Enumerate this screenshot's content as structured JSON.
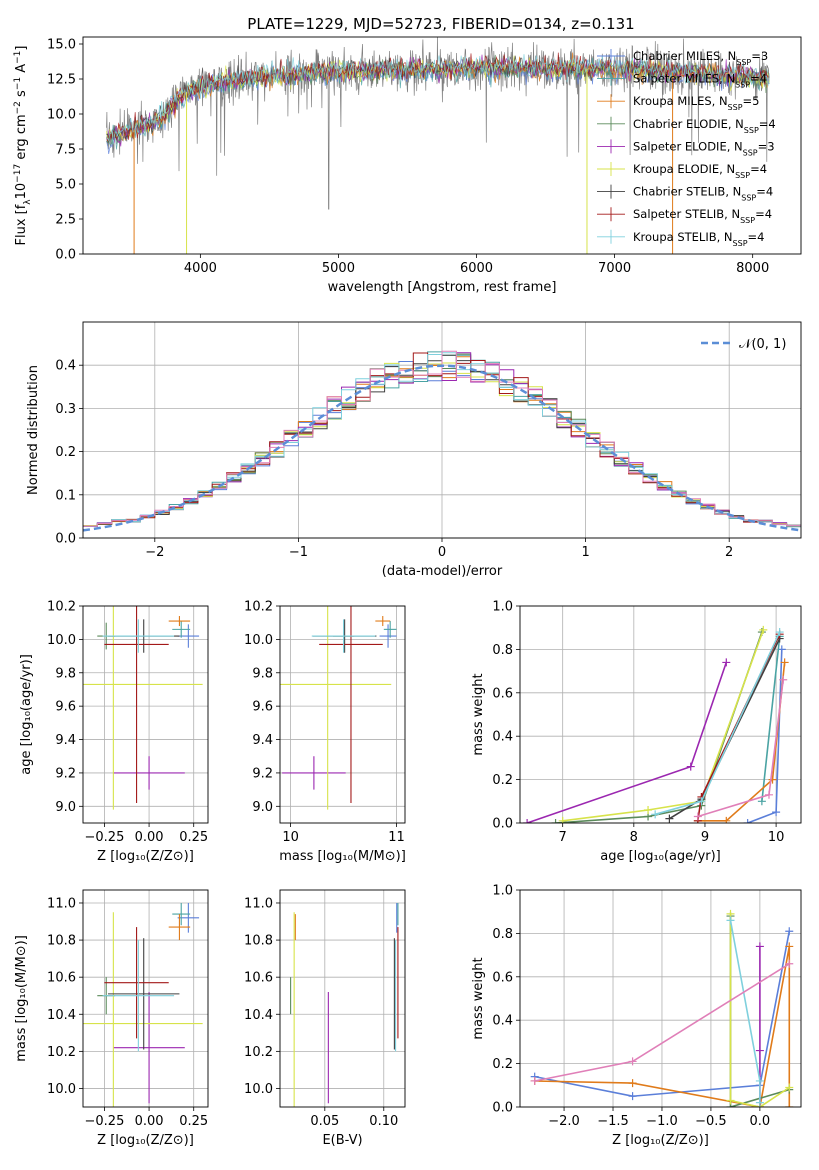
{
  "figure_title": "PLATE=1229, MJD=52723, FIBERID=0134, z=0.131",
  "colors": {
    "Chabrier MILES": "#5b7fd9",
    "Salpeter MILES": "#4aa3a3",
    "Kroupa MILES": "#e07b1a",
    "Chabrier ELODIE": "#5a8a5a",
    "Salpeter ELODIE": "#9b27b0",
    "Kroupa ELODIE": "#d7e34a",
    "Chabrier STELIB": "#404040",
    "Salpeter STELIB": "#a31919",
    "Kroupa STELIB": "#7fd0dd",
    "data": "#808080",
    "pink": "#e07fb8"
  },
  "chart_data": [
    {
      "id": "spectrum",
      "type": "line",
      "title": "PLATE=1229, MJD=52723, FIBERID=0134, z=0.131",
      "xlabel": "wavelength [Angstrom, rest frame]",
      "ylabel_main": "Flux [f",
      "ylabel_sub": "λ",
      "ylabel_rest": "10",
      "ylabel_exp": "−17",
      "ylabel_tail": " erg cm",
      "ylabel_exp2": "−2",
      "ylabel_tail2": " s",
      "ylabel_exp3": "−1",
      "ylabel_tail3": " A",
      "ylabel_exp4": "−1",
      "ylabel_end": "]",
      "xlim": [
        3150,
        8350
      ],
      "ylim": [
        0,
        15.5
      ],
      "xticks": [
        "4000",
        "5000",
        "6000",
        "7000",
        "8000"
      ],
      "xtick_values": [
        4000,
        5000,
        6000,
        7000,
        8000
      ],
      "yticks": [
        "0.0",
        "2.5",
        "5.0",
        "7.5",
        "10.0",
        "12.5",
        "15.0"
      ],
      "ytick_values": [
        0,
        2.5,
        5,
        7.5,
        10,
        12.5,
        15
      ],
      "spectrum_range": [
        3320,
        8120
      ],
      "continuum": [
        [
          3320,
          8.2
        ],
        [
          3700,
          9.5
        ],
        [
          3880,
          11.5
        ],
        [
          4100,
          12.2
        ],
        [
          4500,
          12.7
        ],
        [
          5000,
          13.0
        ],
        [
          6000,
          13.3
        ],
        [
          7000,
          13.2
        ],
        [
          8120,
          12.6
        ]
      ],
      "legend": [
        {
          "name": "Chabrier MILES",
          "nssp": "3"
        },
        {
          "name": "Salpeter MILES",
          "nssp": "4"
        },
        {
          "name": "Kroupa MILES",
          "nssp": "5"
        },
        {
          "name": "Chabrier ELODIE",
          "nssp": "4"
        },
        {
          "name": "Salpeter ELODIE",
          "nssp": "3"
        },
        {
          "name": "Kroupa ELODIE",
          "nssp": "4"
        },
        {
          "name": "Chabrier STELIB",
          "nssp": "4"
        },
        {
          "name": "Salpeter STELIB",
          "nssp": "4"
        },
        {
          "name": "Kroupa STELIB",
          "nssp": "4"
        }
      ],
      "nssp_label": "N",
      "nssp_sub": "SSP"
    },
    {
      "id": "residuals",
      "type": "line",
      "xlabel": "(data-model)/error",
      "ylabel": "Normed distribution",
      "xlim": [
        -2.5,
        2.5
      ],
      "ylim": [
        0,
        0.5
      ],
      "xticks": [
        "−2",
        "−1",
        "0",
        "1",
        "2"
      ],
      "xtick_values": [
        -2,
        -1,
        0,
        1,
        2
      ],
      "yticks": [
        "0.0",
        "0.1",
        "0.2",
        "0.3",
        "0.4"
      ],
      "ytick_values": [
        0,
        0.1,
        0.2,
        0.3,
        0.4
      ],
      "legend_label": "𝒩(0, 1)",
      "bin_width": 0.1
    },
    {
      "id": "age_vs_Z",
      "type": "scatter",
      "xlabel": "Z [log₁₀(Z/Z⊙)]",
      "ylabel": "age  [log₁₀(age/yr)]",
      "xlim": [
        -0.37,
        0.33
      ],
      "ylim": [
        8.9,
        10.2
      ],
      "xticks": [
        "−0.25",
        "0.00",
        "0.25"
      ],
      "xtick_values": [
        -0.25,
        0,
        0.25
      ],
      "yticks": [
        "9.0",
        "9.2",
        "9.4",
        "9.6",
        "9.8",
        "10.0",
        "10.2"
      ],
      "ytick_values": [
        9.0,
        9.2,
        9.4,
        9.6,
        9.8,
        10.0,
        10.2
      ]
    },
    {
      "id": "age_vs_mass",
      "type": "scatter",
      "xlabel": "mass [log₁₀(M/M⊙)]",
      "ylabel": "",
      "xlim": [
        9.9,
        11.08
      ],
      "ylim": [
        8.9,
        10.2
      ],
      "xticks": [
        "10",
        "11"
      ],
      "xtick_values": [
        10,
        11
      ],
      "yticks": [
        "9.0",
        "9.2",
        "9.4",
        "9.6",
        "9.8",
        "10.0",
        "10.2"
      ],
      "ytick_values": [
        9.0,
        9.2,
        9.4,
        9.6,
        9.8,
        10.0,
        10.2
      ]
    },
    {
      "id": "weight_vs_age",
      "type": "line",
      "xlabel": "age  [log₁₀(age/yr)]",
      "ylabel": "mass weight",
      "xlim": [
        6.4,
        10.35
      ],
      "ylim": [
        0,
        1
      ],
      "xticks": [
        "7",
        "8",
        "9",
        "10"
      ],
      "xtick_values": [
        7,
        8,
        9,
        10
      ],
      "yticks": [
        "0.0",
        "0.2",
        "0.4",
        "0.6",
        "0.8",
        "1.0"
      ],
      "ytick_values": [
        0,
        0.2,
        0.4,
        0.6,
        0.8,
        1.0
      ]
    },
    {
      "id": "mass_vs_Z",
      "type": "scatter",
      "xlabel": "Z [log₁₀(Z/Z⊙)]",
      "ylabel": "mass [log₁₀(M/M⊙)]",
      "xlim": [
        -0.37,
        0.33
      ],
      "ylim": [
        9.9,
        11.07
      ],
      "xticks": [
        "−0.25",
        "0.00",
        "0.25"
      ],
      "xtick_values": [
        -0.25,
        0,
        0.25
      ],
      "yticks": [
        "10.0",
        "10.2",
        "10.4",
        "10.6",
        "10.8",
        "11.0"
      ],
      "ytick_values": [
        10.0,
        10.2,
        10.4,
        10.6,
        10.8,
        11.0
      ]
    },
    {
      "id": "mass_vs_ebv",
      "type": "scatter",
      "xlabel": "E(B-V)",
      "ylabel": "",
      "xlim": [
        0.012,
        0.118
      ],
      "ylim": [
        9.9,
        11.07
      ],
      "xticks": [
        "0.05",
        "0.10"
      ],
      "xtick_values": [
        0.05,
        0.1
      ],
      "yticks": [
        "10.0",
        "10.2",
        "10.4",
        "10.6",
        "10.8",
        "11.0"
      ],
      "ytick_values": [
        10.0,
        10.2,
        10.4,
        10.6,
        10.8,
        11.0
      ]
    },
    {
      "id": "weight_vs_Z",
      "type": "line",
      "xlabel": "Z [log₁₀(Z/Z⊙)]",
      "ylabel": "mass weight",
      "xlim": [
        -2.45,
        0.42
      ],
      "ylim": [
        0,
        1
      ],
      "xticks": [
        "−2.0",
        "−1.5",
        "−1.0",
        "−0.5",
        "0.0"
      ],
      "xtick_values": [
        -2.0,
        -1.5,
        -1.0,
        -0.5,
        0.0
      ],
      "yticks": [
        "0.0",
        "0.2",
        "0.4",
        "0.6",
        "0.8",
        "1.0"
      ],
      "ytick_values": [
        0,
        0.2,
        0.4,
        0.6,
        0.8,
        1.0
      ]
    }
  ],
  "fits": [
    {
      "key": "Chabrier MILES",
      "Z": 0.22,
      "Zerr": 0.06,
      "age": 10.02,
      "ageerr": 0.07,
      "mass": 10.92,
      "masserr": 0.08,
      "ebv": 0.111
    },
    {
      "key": "Salpeter MILES",
      "Z": 0.18,
      "Zerr": 0.05,
      "age": 10.06,
      "ageerr": 0.05,
      "mass": 10.94,
      "masserr": 0.06,
      "ebv": 0.112
    },
    {
      "key": "Kroupa MILES",
      "Z": 0.17,
      "Zerr": 0.06,
      "age": 10.11,
      "ageerr": 0.03,
      "mass": 10.87,
      "masserr": 0.07,
      "ebv": 0.025
    },
    {
      "key": "Chabrier ELODIE",
      "Z": -0.24,
      "Zerr": 0.05,
      "age": 10.02,
      "ageerr": 0.08,
      "mass": 10.5,
      "masserr": 0.1,
      "ebv": 0.021
    },
    {
      "key": "Salpeter ELODIE",
      "Z": 0.0,
      "Zerr": 0.2,
      "age": 9.2,
      "ageerr": 0.1,
      "mass": 10.22,
      "masserr": 0.3,
      "ebv": 0.053
    },
    {
      "key": "Kroupa ELODIE",
      "Z": -0.2,
      "Zerr": 0.5,
      "age": 9.73,
      "ageerr": 0.75,
      "mass": 10.35,
      "masserr": 0.6,
      "ebv": 0.024
    },
    {
      "key": "Chabrier STELIB",
      "Z": -0.03,
      "Zerr": 0.2,
      "age": 10.02,
      "ageerr": 0.1,
      "mass": 10.51,
      "masserr": 0.3,
      "ebv": 0.109
    },
    {
      "key": "Salpeter STELIB",
      "Z": -0.07,
      "Zerr": 0.18,
      "age": 9.97,
      "ageerr": 0.95,
      "mass": 10.57,
      "masserr": 0.3,
      "ebv": 0.112
    },
    {
      "key": "Kroupa STELIB",
      "Z": -0.06,
      "Zerr": 0.2,
      "age": 10.02,
      "ageerr": 0.1,
      "mass": 10.5,
      "masserr": 0.3,
      "ebv": 0.11
    }
  ],
  "weights_age": [
    {
      "key": "Chabrier MILES",
      "points": [
        [
          9.6,
          0.0
        ],
        [
          10.0,
          0.05
        ],
        [
          10.08,
          0.8
        ]
      ]
    },
    {
      "key": "Salpeter MILES",
      "points": [
        [
          9.8,
          0.1
        ],
        [
          10.05,
          0.86
        ]
      ]
    },
    {
      "key": "Kroupa MILES",
      "points": [
        [
          8.9,
          0.01
        ],
        [
          9.3,
          0.01
        ],
        [
          9.95,
          0.2
        ],
        [
          10.12,
          0.74
        ]
      ]
    },
    {
      "key": "Chabrier ELODIE",
      "points": [
        [
          6.9,
          0.0
        ],
        [
          8.2,
          0.03
        ],
        [
          8.95,
          0.08
        ],
        [
          9.8,
          0.88
        ]
      ]
    },
    {
      "key": "Salpeter ELODIE",
      "points": [
        [
          6.5,
          0.0
        ],
        [
          8.8,
          0.26
        ],
        [
          9.3,
          0.74
        ]
      ]
    },
    {
      "key": "Kroupa ELODIE",
      "points": [
        [
          7.0,
          0.01
        ],
        [
          8.2,
          0.06
        ],
        [
          8.95,
          0.1
        ],
        [
          9.82,
          0.89
        ]
      ]
    },
    {
      "key": "Chabrier STELIB",
      "points": [
        [
          8.5,
          0.02
        ],
        [
          8.95,
          0.11
        ],
        [
          10.05,
          0.85
        ]
      ]
    },
    {
      "key": "Salpeter STELIB",
      "points": [
        [
          8.9,
          0.01
        ],
        [
          8.95,
          0.12
        ],
        [
          10.05,
          0.87
        ]
      ]
    },
    {
      "key": "Kroupa STELIB",
      "points": [
        [
          8.3,
          0.04
        ],
        [
          8.95,
          0.1
        ],
        [
          10.05,
          0.88
        ]
      ]
    },
    {
      "key": "pink",
      "points": [
        [
          8.9,
          0.03
        ],
        [
          9.9,
          0.13
        ],
        [
          10.1,
          0.66
        ]
      ]
    }
  ],
  "weights_Z": [
    {
      "key": "Chabrier MILES",
      "points": [
        [
          -2.3,
          0.14
        ],
        [
          -1.3,
          0.05
        ],
        [
          0.0,
          0.1
        ],
        [
          0.3,
          0.81
        ]
      ]
    },
    {
      "key": "Kroupa MILES",
      "points": [
        [
          -2.3,
          0.12
        ],
        [
          -1.3,
          0.11
        ],
        [
          0.0,
          0.0
        ],
        [
          0.3,
          0.74
        ],
        [
          0.3,
          0.0
        ]
      ]
    },
    {
      "key": "Chabrier ELODIE",
      "points": [
        [
          -0.3,
          0.88
        ],
        [
          -0.3,
          0.0
        ],
        [
          0.3,
          0.08
        ]
      ]
    },
    {
      "key": "Salpeter ELODIE",
      "points": [
        [
          0.0,
          0.74
        ],
        [
          0.0,
          0.26
        ],
        [
          0.0,
          0.0
        ]
      ]
    },
    {
      "key": "Kroupa ELODIE",
      "points": [
        [
          -0.3,
          0.89
        ],
        [
          -0.3,
          0.03
        ],
        [
          0.0,
          0.0
        ],
        [
          0.3,
          0.09
        ]
      ]
    },
    {
      "key": "Kroupa STELIB",
      "points": [
        [
          -0.3,
          0.86
        ],
        [
          0.0,
          0.12
        ],
        [
          0.0,
          0.02
        ]
      ]
    },
    {
      "key": "pink",
      "points": [
        [
          -2.3,
          0.12
        ],
        [
          -1.3,
          0.21
        ],
        [
          0.3,
          0.66
        ]
      ]
    }
  ]
}
